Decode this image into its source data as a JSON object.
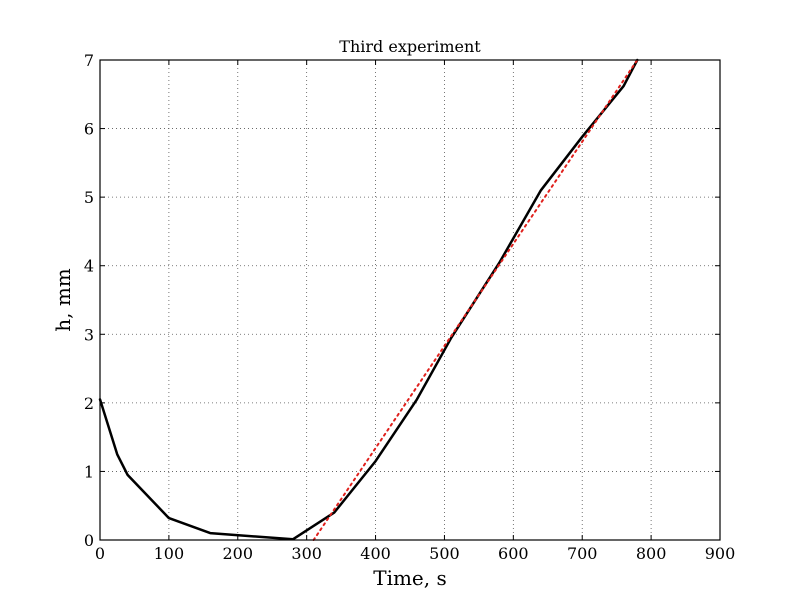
{
  "chart_data": {
    "type": "line",
    "title": "Third experiment",
    "xlabel": "Time, s",
    "ylabel": "h, mm",
    "xlim": [
      0,
      900
    ],
    "ylim": [
      0,
      7
    ],
    "x_ticks": [
      "0",
      "100",
      "200",
      "300",
      "400",
      "500",
      "600",
      "700",
      "800",
      "900"
    ],
    "y_ticks": [
      "0",
      "1",
      "2",
      "3",
      "4",
      "5",
      "6",
      "7"
    ],
    "grid": true,
    "legend": "none",
    "series": [
      {
        "style": "solid",
        "color": "#000000",
        "points": [
          [
            0,
            2.05
          ],
          [
            25,
            1.25
          ],
          [
            40,
            0.95
          ],
          [
            100,
            0.32
          ],
          [
            160,
            0.1
          ],
          [
            280,
            0.01
          ],
          [
            340,
            0.4
          ],
          [
            400,
            1.15
          ],
          [
            460,
            2.05
          ],
          [
            510,
            2.95
          ],
          [
            580,
            4.05
          ],
          [
            640,
            5.1
          ],
          [
            700,
            5.88
          ],
          [
            760,
            6.62
          ],
          [
            780,
            7.0
          ]
        ]
      },
      {
        "style": "dotted",
        "color": "#e0201c",
        "points": [
          [
            310,
            0.0
          ],
          [
            780,
            7.0
          ]
        ]
      }
    ]
  }
}
